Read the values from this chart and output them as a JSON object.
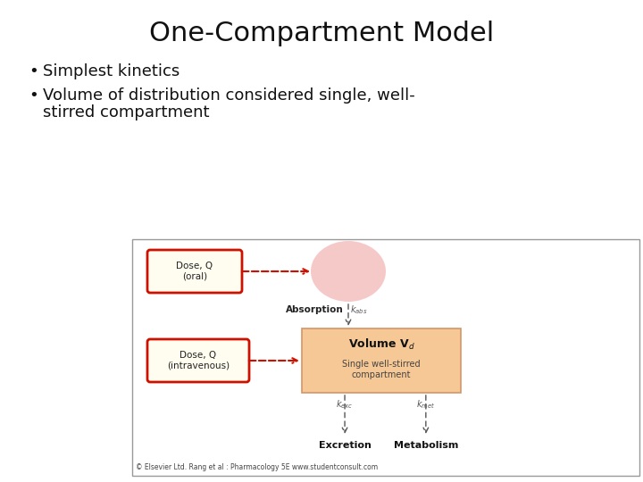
{
  "title": "One-Compartment Model",
  "bullet1": "Simplest kinetics",
  "bullet2_line1": "Volume of distribution considered single, well-",
  "bullet2_line2": "stirred compartment",
  "bg_color": "#ffffff",
  "title_fontsize": 22,
  "bullet_fontsize": 13,
  "diagram": {
    "dose_oral_text": "Dose, Q\n(oral)",
    "dose_iv_text": "Dose, Q\n(intravenous)",
    "absorption_label": "Absorption",
    "excretion_label": "Excretion",
    "metabolism_label": "Metabolism",
    "volume_sublabel": "Single well-stirred\ncompartment",
    "box_border_dose": "#cc1100",
    "box_fill_dose": "#fffdf0",
    "volume_box_color": "#f5c896",
    "volume_box_border": "#d4956a",
    "oral_circle_color": "#f5c0c0",
    "arrow_red": "#cc1100",
    "arrow_gray": "#555555",
    "diag_border": "#999999",
    "copyright": "© Elsevier Ltd. Rang et al : Pharmacology 5E www.studentconsult.com"
  }
}
